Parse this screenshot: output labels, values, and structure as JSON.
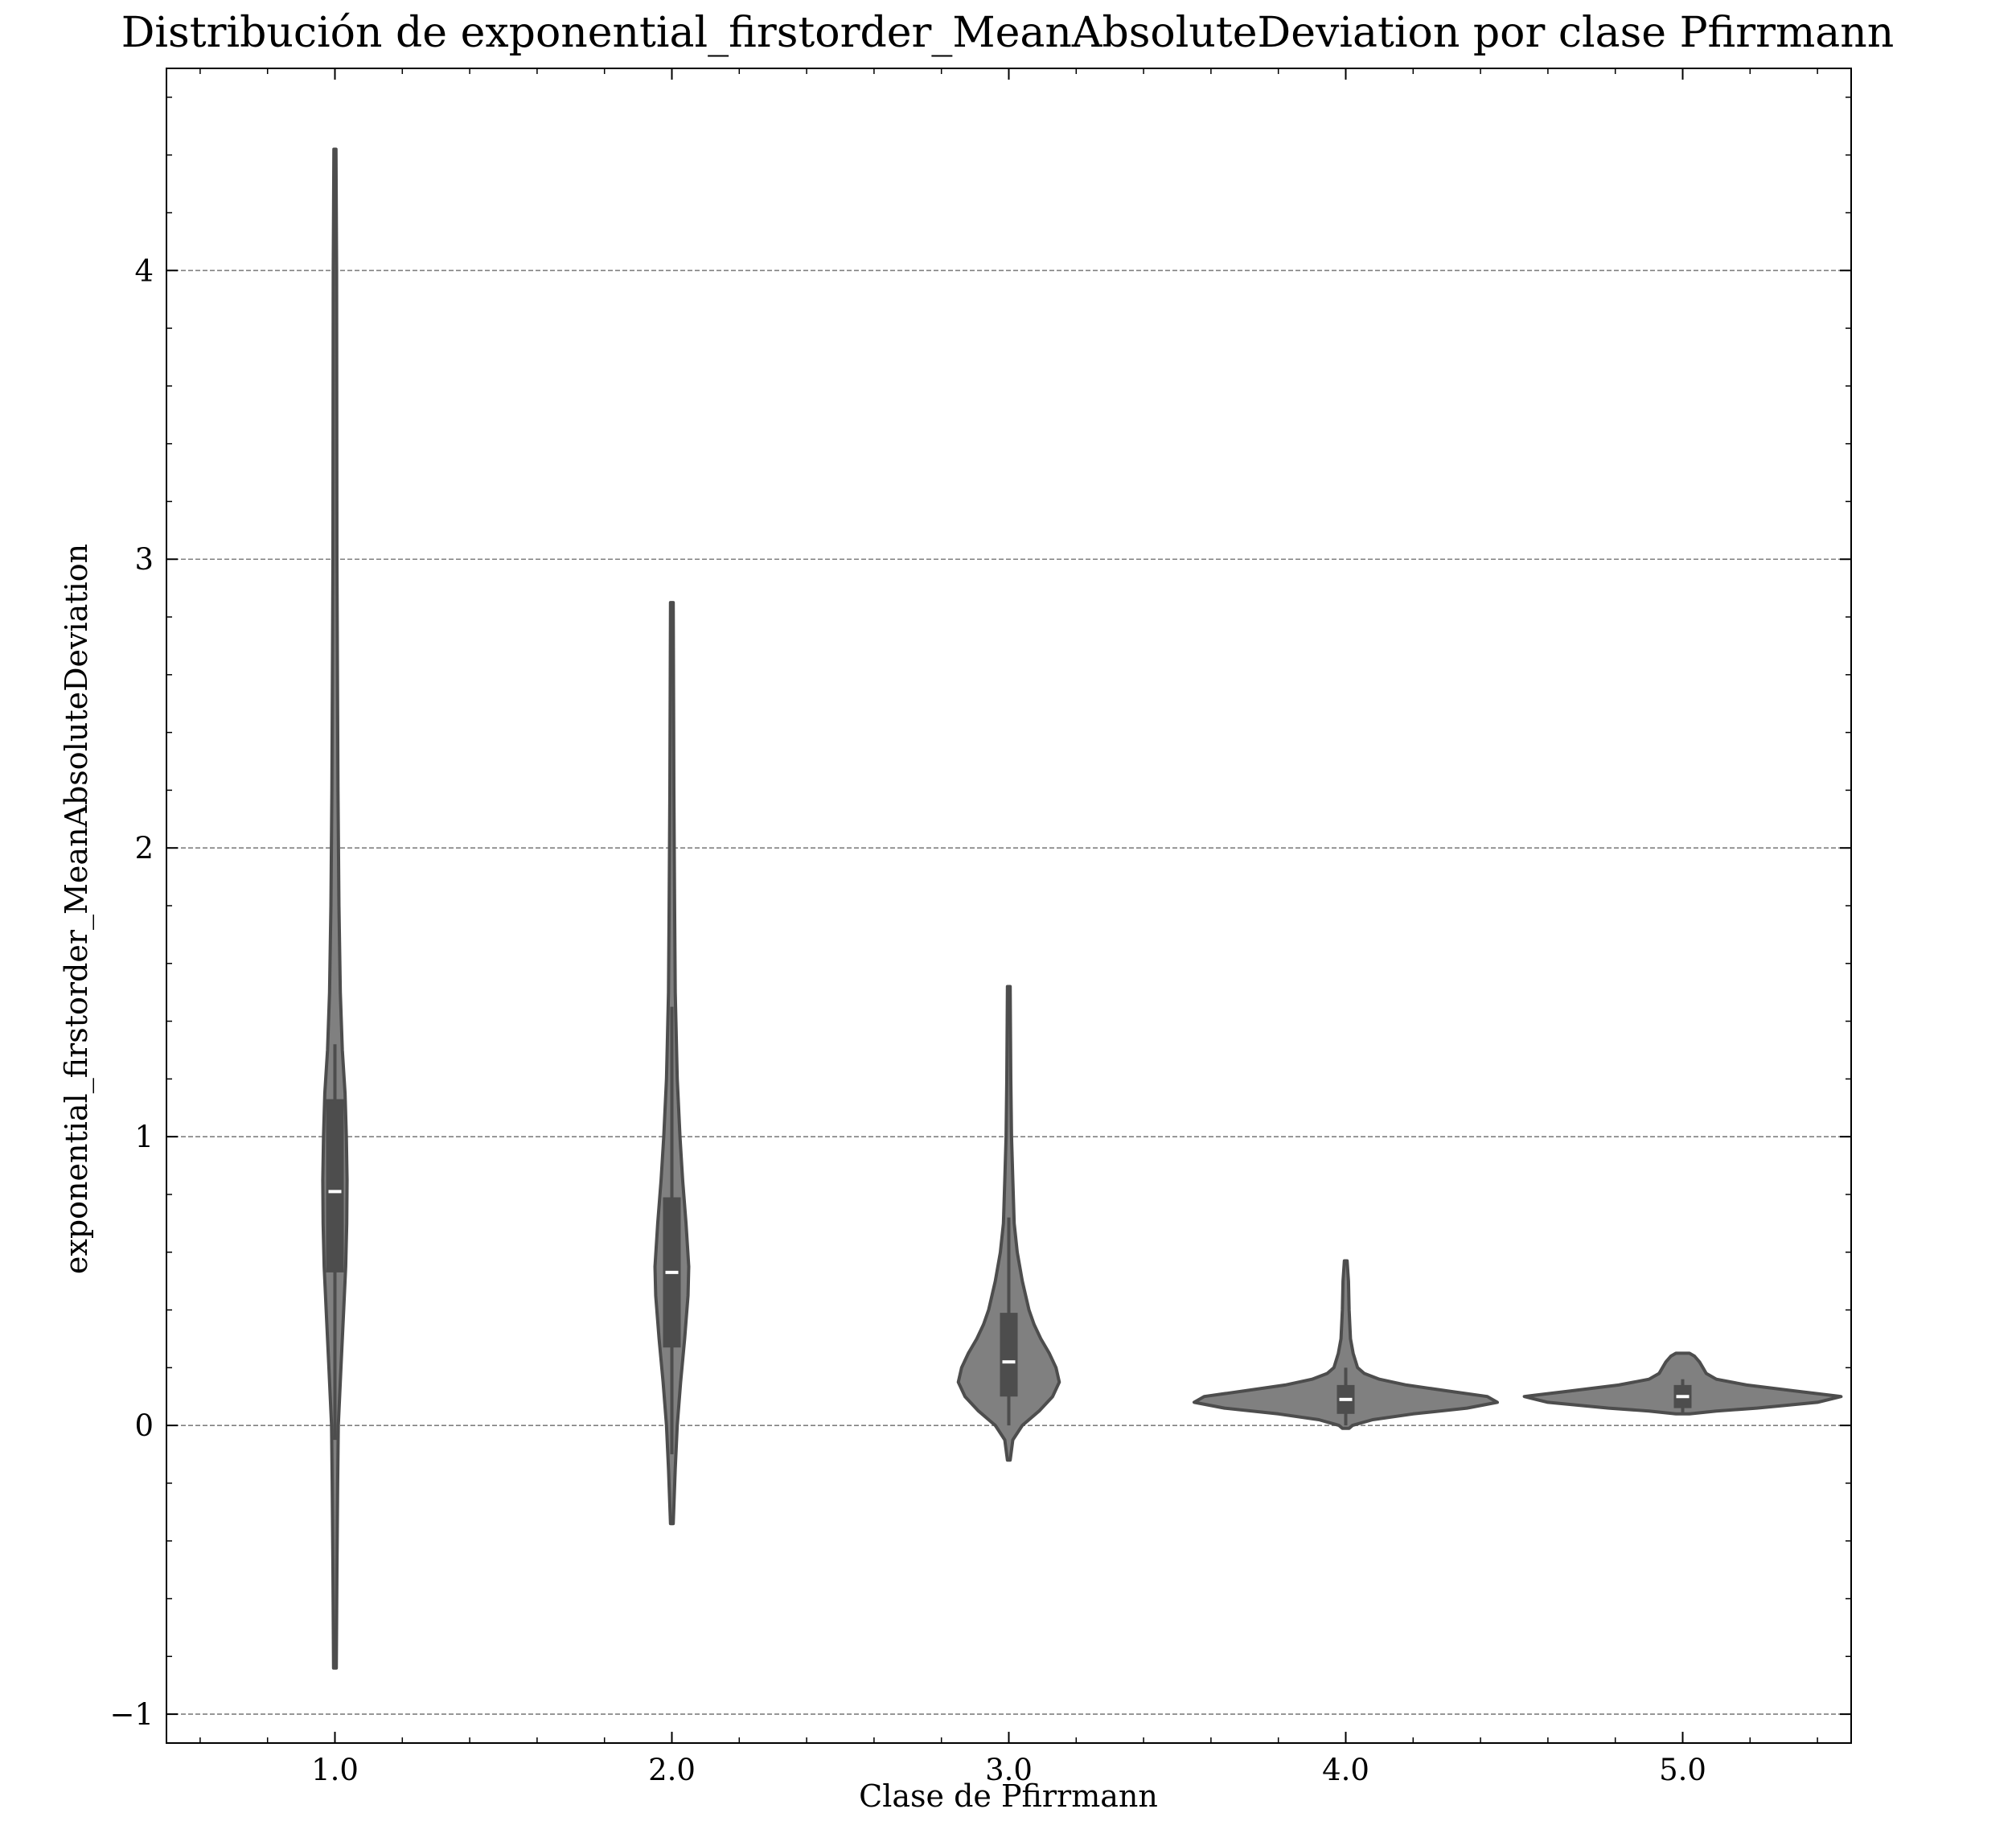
{
  "chart_data": {
    "type": "violin",
    "title": "Distribución de exponential_firstorder_MeanAbsoluteDeviation por clase Pfirrmann",
    "xlabel": "Clase de Pfirrmann",
    "ylabel": "exponential_firstorder_MeanAbsoluteDeviation",
    "categories": [
      "1.0",
      "2.0",
      "3.0",
      "4.0",
      "5.0"
    ],
    "xlim": [
      0.5,
      5.5
    ],
    "ylim": [
      -1.1,
      4.7
    ],
    "yticks": [
      -1,
      0,
      1,
      2,
      3,
      4
    ],
    "ytick_labels": [
      "−1",
      "0",
      "1",
      "2",
      "3",
      "4"
    ],
    "grid": "horizontal-dashed",
    "colors": {
      "violin_fill": "#808080",
      "violin_edge": "#4d4d4d",
      "box": "#4d4d4d",
      "median": "#ffffff",
      "grid": "#808080"
    },
    "violins": [
      {
        "category": "1.0",
        "min": -0.84,
        "max": 4.42,
        "q1": 0.53,
        "median": 0.81,
        "q3": 1.13,
        "whisker_low": -0.05,
        "whisker_high": 1.32,
        "profile": [
          [
            -0.84,
            0.004
          ],
          [
            -0.5,
            0.006
          ],
          [
            -0.2,
            0.008
          ],
          [
            0.0,
            0.01
          ],
          [
            0.2,
            0.018
          ],
          [
            0.4,
            0.026
          ],
          [
            0.55,
            0.032
          ],
          [
            0.7,
            0.035
          ],
          [
            0.85,
            0.036
          ],
          [
            1.0,
            0.034
          ],
          [
            1.15,
            0.03
          ],
          [
            1.3,
            0.022
          ],
          [
            1.5,
            0.016
          ],
          [
            1.8,
            0.012
          ],
          [
            2.2,
            0.009
          ],
          [
            3.0,
            0.006
          ],
          [
            4.0,
            0.005
          ],
          [
            4.42,
            0.003
          ]
        ]
      },
      {
        "category": "2.0",
        "min": -0.34,
        "max": 2.85,
        "q1": 0.27,
        "median": 0.53,
        "q3": 0.79,
        "whisker_low": -0.1,
        "whisker_high": 1.45,
        "profile": [
          [
            -0.34,
            0.004
          ],
          [
            -0.15,
            0.01
          ],
          [
            0.0,
            0.016
          ],
          [
            0.15,
            0.026
          ],
          [
            0.3,
            0.038
          ],
          [
            0.45,
            0.048
          ],
          [
            0.55,
            0.05
          ],
          [
            0.7,
            0.042
          ],
          [
            0.85,
            0.032
          ],
          [
            1.0,
            0.024
          ],
          [
            1.2,
            0.016
          ],
          [
            1.5,
            0.01
          ],
          [
            1.8,
            0.008
          ],
          [
            2.2,
            0.006
          ],
          [
            2.85,
            0.004
          ]
        ]
      },
      {
        "category": "3.0",
        "min": -0.12,
        "max": 1.52,
        "q1": 0.1,
        "median": 0.22,
        "q3": 0.39,
        "whisker_low": 0.0,
        "whisker_high": 0.72,
        "profile": [
          [
            -0.12,
            0.004
          ],
          [
            -0.05,
            0.012
          ],
          [
            0.0,
            0.04
          ],
          [
            0.05,
            0.09
          ],
          [
            0.1,
            0.13
          ],
          [
            0.15,
            0.15
          ],
          [
            0.2,
            0.14
          ],
          [
            0.25,
            0.12
          ],
          [
            0.3,
            0.095
          ],
          [
            0.35,
            0.075
          ],
          [
            0.4,
            0.06
          ],
          [
            0.5,
            0.04
          ],
          [
            0.6,
            0.025
          ],
          [
            0.7,
            0.016
          ],
          [
            0.85,
            0.012
          ],
          [
            1.0,
            0.008
          ],
          [
            1.2,
            0.006
          ],
          [
            1.52,
            0.004
          ]
        ]
      },
      {
        "category": "4.0",
        "min": -0.01,
        "max": 0.57,
        "q1": 0.04,
        "median": 0.09,
        "q3": 0.14,
        "whisker_low": 0.0,
        "whisker_high": 0.2,
        "profile": [
          [
            -0.01,
            0.01
          ],
          [
            0.0,
            0.02
          ],
          [
            0.02,
            0.08
          ],
          [
            0.04,
            0.2
          ],
          [
            0.06,
            0.36
          ],
          [
            0.08,
            0.45
          ],
          [
            0.1,
            0.42
          ],
          [
            0.12,
            0.3
          ],
          [
            0.14,
            0.18
          ],
          [
            0.16,
            0.1
          ],
          [
            0.18,
            0.055
          ],
          [
            0.2,
            0.035
          ],
          [
            0.25,
            0.022
          ],
          [
            0.3,
            0.014
          ],
          [
            0.4,
            0.01
          ],
          [
            0.5,
            0.008
          ],
          [
            0.57,
            0.004
          ]
        ]
      },
      {
        "category": "5.0",
        "min": 0.04,
        "max": 0.25,
        "q1": 0.06,
        "median": 0.1,
        "q3": 0.14,
        "whisker_low": 0.04,
        "whisker_high": 0.16,
        "profile": [
          [
            0.04,
            0.02
          ],
          [
            0.05,
            0.1
          ],
          [
            0.06,
            0.22
          ],
          [
            0.08,
            0.4
          ],
          [
            0.1,
            0.47
          ],
          [
            0.12,
            0.33
          ],
          [
            0.14,
            0.19
          ],
          [
            0.16,
            0.1
          ],
          [
            0.18,
            0.07
          ],
          [
            0.2,
            0.06
          ],
          [
            0.22,
            0.05
          ],
          [
            0.24,
            0.035
          ],
          [
            0.25,
            0.02
          ]
        ]
      }
    ]
  }
}
